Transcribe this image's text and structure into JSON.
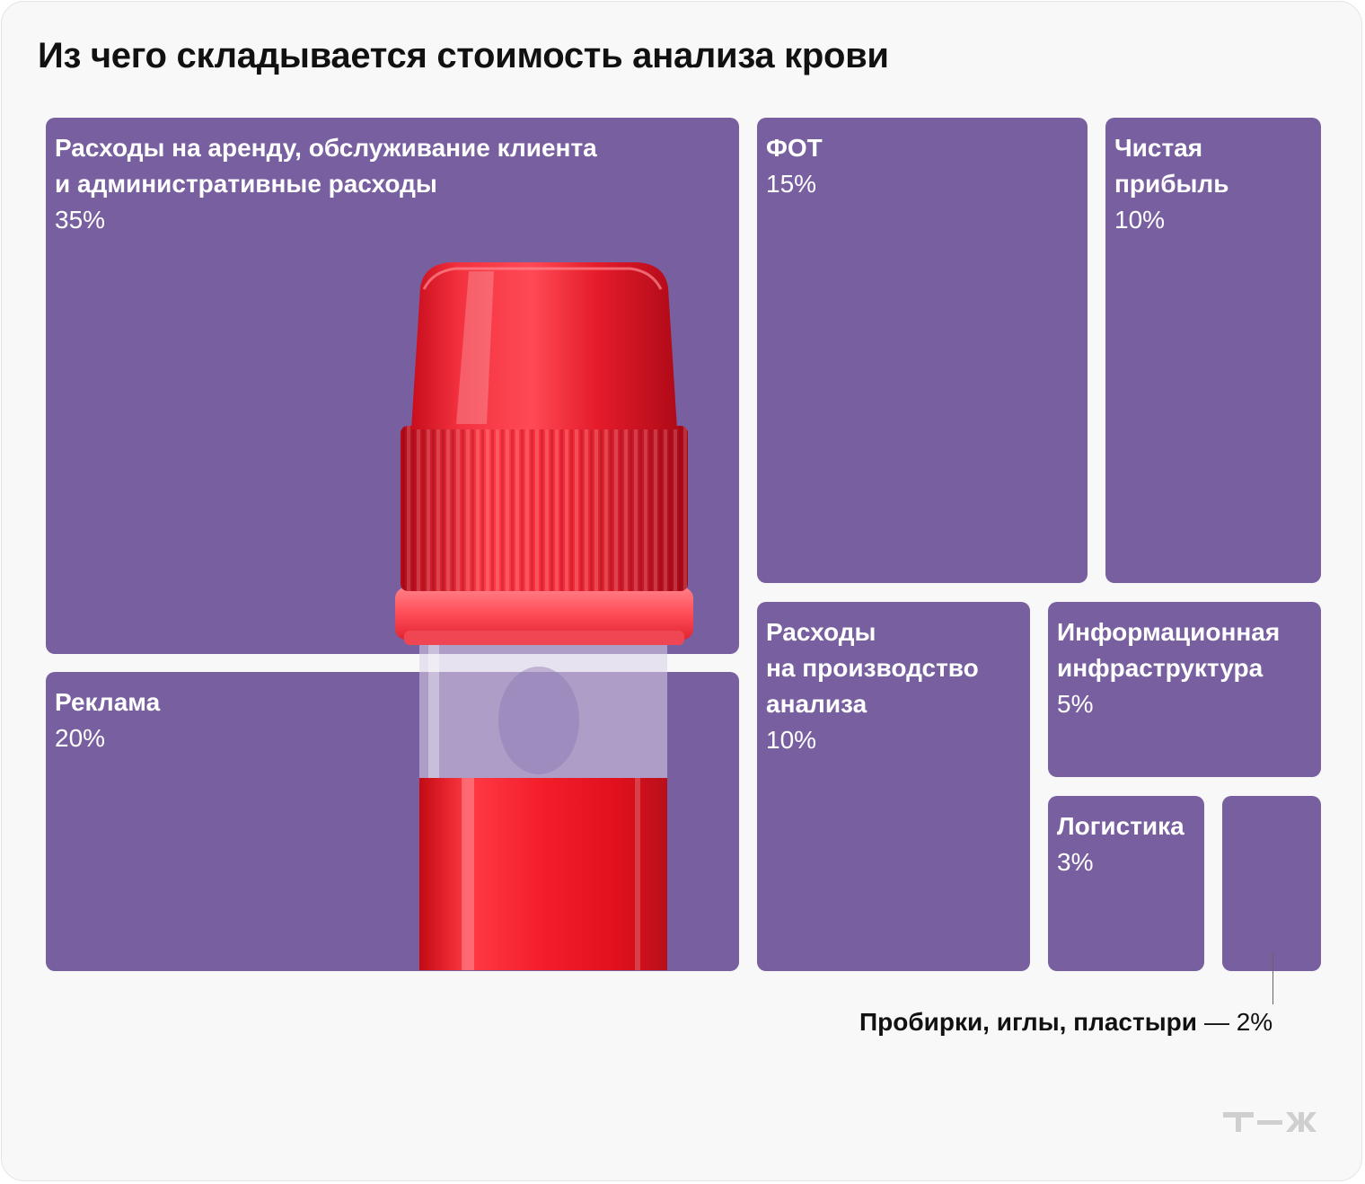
{
  "title": "Из чего складывается стоимость анализа крови",
  "brand_color": "#7860a0",
  "chart_data": {
    "type": "treemap",
    "title": "Из чего складывается стоимость анализа крови",
    "unit": "%",
    "items": [
      {
        "label": "Расходы на аренду, обслуживание клиента\nи административные расходы",
        "value": 35,
        "value_label": "35%"
      },
      {
        "label": "Реклама",
        "value": 20,
        "value_label": "20%"
      },
      {
        "label": "ФОТ",
        "value": 15,
        "value_label": "15%"
      },
      {
        "label": "Чистая\nприбыль",
        "value": 10,
        "value_label": "10%"
      },
      {
        "label": "Расходы\nна производство\nанализа",
        "value": 10,
        "value_label": "10%"
      },
      {
        "label": "Информационная\nинфраструктура",
        "value": 5,
        "value_label": "5%"
      },
      {
        "label": "Логистика",
        "value": 3,
        "value_label": "3%"
      },
      {
        "label": "Пробирки, иглы, пластыри",
        "value": 2,
        "value_label": "— 2%"
      }
    ]
  },
  "illustration": "blood-tube-icon",
  "logo": "tj-logo-icon"
}
